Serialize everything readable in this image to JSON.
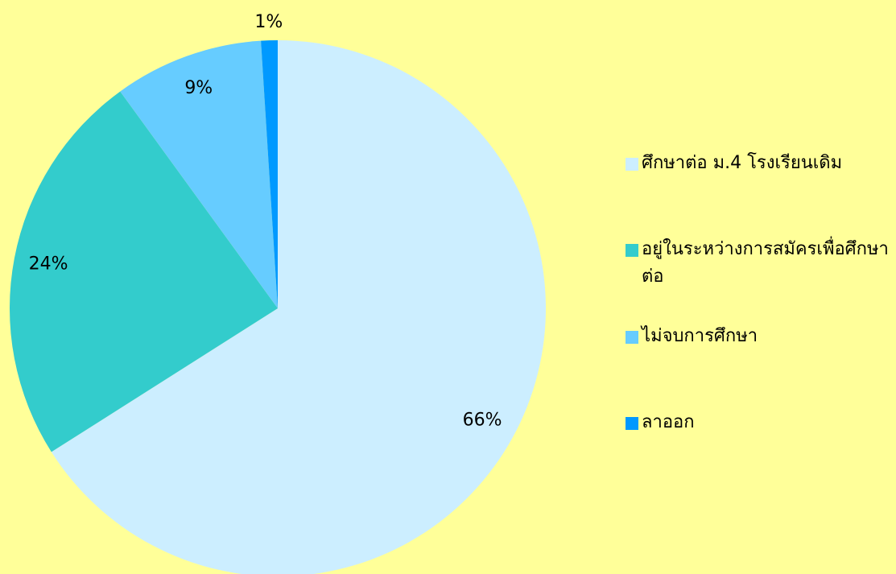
{
  "chart_data": {
    "type": "pie",
    "categories": [
      "ศึกษาต่อ ม.4  โรงเรียนเดิม",
      "อยู่ในระหว่างการสมัครเพื่อศึกษาต่อ",
      "ไม่จบการศึกษา",
      "ลาออก"
    ],
    "values": [
      66,
      24,
      9,
      1
    ],
    "value_labels": [
      "66%",
      "24%",
      "9%",
      "1%"
    ],
    "colors": [
      "#cceeff",
      "#33cccc",
      "#66ccff",
      "#0099ff"
    ],
    "legend": "right"
  }
}
